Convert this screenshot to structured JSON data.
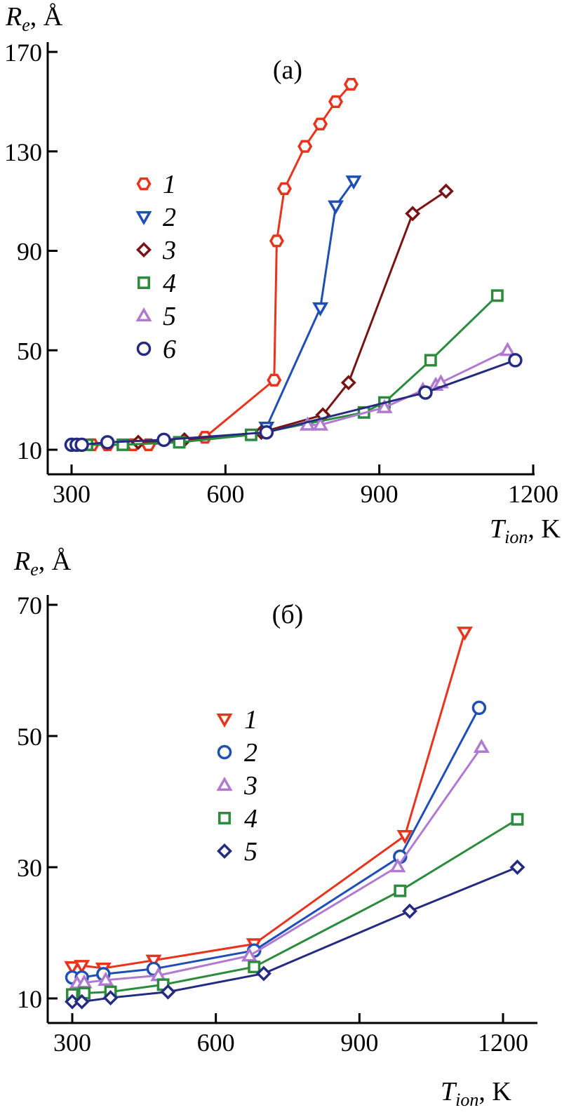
{
  "chart_data": [
    {
      "type": "line",
      "panel_label": "(a)",
      "xlabel_main": "T",
      "xlabel_sub": "ion",
      "xlabel_unit": ", K",
      "ylabel_main": "R",
      "ylabel_sub": "e",
      "ylabel_unit": ", Å",
      "xlim": [
        270,
        1200
      ],
      "ylim": [
        5,
        170
      ],
      "xticks": [
        300,
        600,
        900,
        1200
      ],
      "yticks": [
        10,
        50,
        90,
        130,
        170
      ],
      "legend_position": "left-middle",
      "series": [
        {
          "name": "1",
          "color": "#e8341c",
          "marker": "hexagon",
          "x": [
            300,
            310,
            320,
            340,
            370,
            420,
            450,
            560,
            695,
            700,
            715,
            755,
            785,
            815,
            845
          ],
          "y": [
            12,
            12,
            12,
            12,
            12,
            12,
            12,
            15,
            38,
            94,
            115,
            132,
            141,
            150,
            157
          ]
        },
        {
          "name": "2",
          "color": "#1f4fb5",
          "marker": "triangle-down",
          "x": [
            680,
            785,
            815,
            850
          ],
          "y": [
            19,
            67,
            108,
            118
          ]
        },
        {
          "name": "3",
          "color": "#7a1414",
          "marker": "diamond",
          "x": [
            430,
            520,
            670,
            790,
            840,
            965,
            1030
          ],
          "y": [
            13,
            14,
            17,
            24,
            37,
            105,
            114
          ]
        },
        {
          "name": "4",
          "color": "#2a8c3c",
          "marker": "square",
          "x": [
            330,
            400,
            510,
            650,
            870,
            910,
            1000,
            1130
          ],
          "y": [
            12,
            12,
            13,
            16,
            25,
            29,
            46,
            72
          ]
        },
        {
          "name": "5",
          "color": "#b07ad0",
          "marker": "triangle-up",
          "x": [
            760,
            785,
            910,
            985,
            1010,
            1020,
            1150
          ],
          "y": [
            20,
            20,
            27,
            34,
            36,
            37,
            50
          ]
        },
        {
          "name": "6",
          "color": "#252b80",
          "marker": "circle",
          "x": [
            300,
            310,
            320,
            370,
            480,
            680,
            990,
            1165
          ],
          "y": [
            12,
            12,
            12,
            13,
            14,
            17,
            33,
            46
          ]
        }
      ]
    },
    {
      "type": "line",
      "panel_label": "(б)",
      "xlabel_main": "T",
      "xlabel_sub": "ion",
      "xlabel_unit": ", K",
      "ylabel_main": "R",
      "ylabel_sub": "e",
      "ylabel_unit": ", Å",
      "xlim": [
        260,
        1270
      ],
      "ylim": [
        7,
        70
      ],
      "xticks": [
        300,
        600,
        900,
        1200
      ],
      "yticks": [
        10,
        30,
        50,
        70
      ],
      "legend_position": "center",
      "series": [
        {
          "name": "1",
          "color": "#e8341c",
          "marker": "triangle-down",
          "x": [
            300,
            320,
            365,
            470,
            680,
            995,
            1120
          ],
          "y": [
            14.8,
            15.0,
            14.6,
            15.8,
            18.3,
            34.8,
            65.8
          ]
        },
        {
          "name": "2",
          "color": "#1f4fb5",
          "marker": "circle",
          "x": [
            300,
            320,
            365,
            470,
            680,
            985,
            1150
          ],
          "y": [
            13.2,
            13.2,
            13.7,
            14.5,
            17.3,
            31.6,
            54.3
          ]
        },
        {
          "name": "3",
          "color": "#b07ad0",
          "marker": "triangle-up",
          "x": [
            310,
            325,
            370,
            480,
            670,
            980,
            1155
          ],
          "y": [
            12.3,
            12.4,
            12.8,
            13.5,
            16.5,
            30.1,
            48.3
          ]
        },
        {
          "name": "4",
          "color": "#2a8c3c",
          "marker": "square",
          "x": [
            300,
            325,
            380,
            490,
            680,
            985,
            1230
          ],
          "y": [
            10.6,
            10.8,
            11.0,
            12.1,
            14.8,
            26.4,
            37.3
          ]
        },
        {
          "name": "5",
          "color": "#252b80",
          "marker": "diamond",
          "x": [
            300,
            320,
            380,
            500,
            700,
            1005,
            1230
          ],
          "y": [
            9.5,
            9.5,
            10.1,
            11.0,
            13.8,
            23.3,
            30.0
          ]
        }
      ]
    }
  ]
}
